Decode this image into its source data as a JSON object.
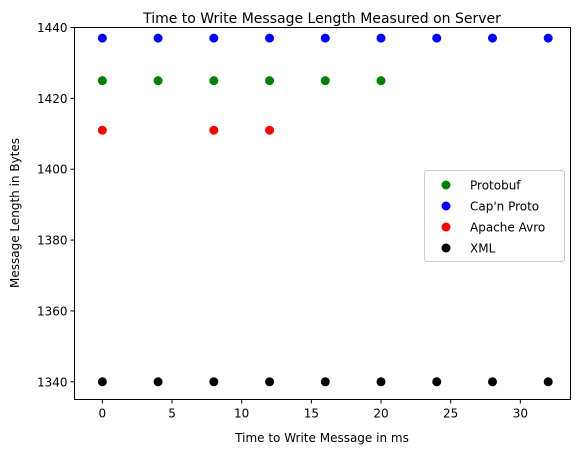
{
  "chart_data": {
    "type": "scatter",
    "title": "Time to Write Message Length Measured on Server",
    "xlabel": "Time to Write Message in ms",
    "ylabel": "Message Length in Bytes",
    "xlim": [
      -2,
      33.6
    ],
    "ylim": [
      1335,
      1440
    ],
    "xticks": [
      0,
      5,
      10,
      15,
      20,
      25,
      30
    ],
    "yticks": [
      1340,
      1360,
      1380,
      1400,
      1420,
      1440
    ],
    "grid": false,
    "legend_position": "center-right",
    "series": [
      {
        "name": "Protobuf",
        "color": "#008000",
        "points": [
          [
            0,
            1425
          ],
          [
            4,
            1425
          ],
          [
            8,
            1425
          ],
          [
            12,
            1425
          ],
          [
            16,
            1425
          ],
          [
            20,
            1425
          ]
        ]
      },
      {
        "name": "Cap'n Proto",
        "color": "#0000ff",
        "points": [
          [
            0,
            1437
          ],
          [
            4,
            1437
          ],
          [
            8,
            1437
          ],
          [
            12,
            1437
          ],
          [
            16,
            1437
          ],
          [
            20,
            1437
          ],
          [
            24,
            1437
          ],
          [
            28,
            1437
          ],
          [
            32,
            1437
          ]
        ]
      },
      {
        "name": "Apache Avro",
        "color": "#ff0000",
        "points": [
          [
            0,
            1411
          ],
          [
            8,
            1411
          ],
          [
            12,
            1411
          ]
        ]
      },
      {
        "name": "XML",
        "color": "#000000",
        "points": [
          [
            0,
            1340
          ],
          [
            4,
            1340
          ],
          [
            8,
            1340
          ],
          [
            12,
            1340
          ],
          [
            16,
            1340
          ],
          [
            20,
            1340
          ],
          [
            24,
            1340
          ],
          [
            28,
            1340
          ],
          [
            32,
            1340
          ]
        ]
      }
    ]
  }
}
